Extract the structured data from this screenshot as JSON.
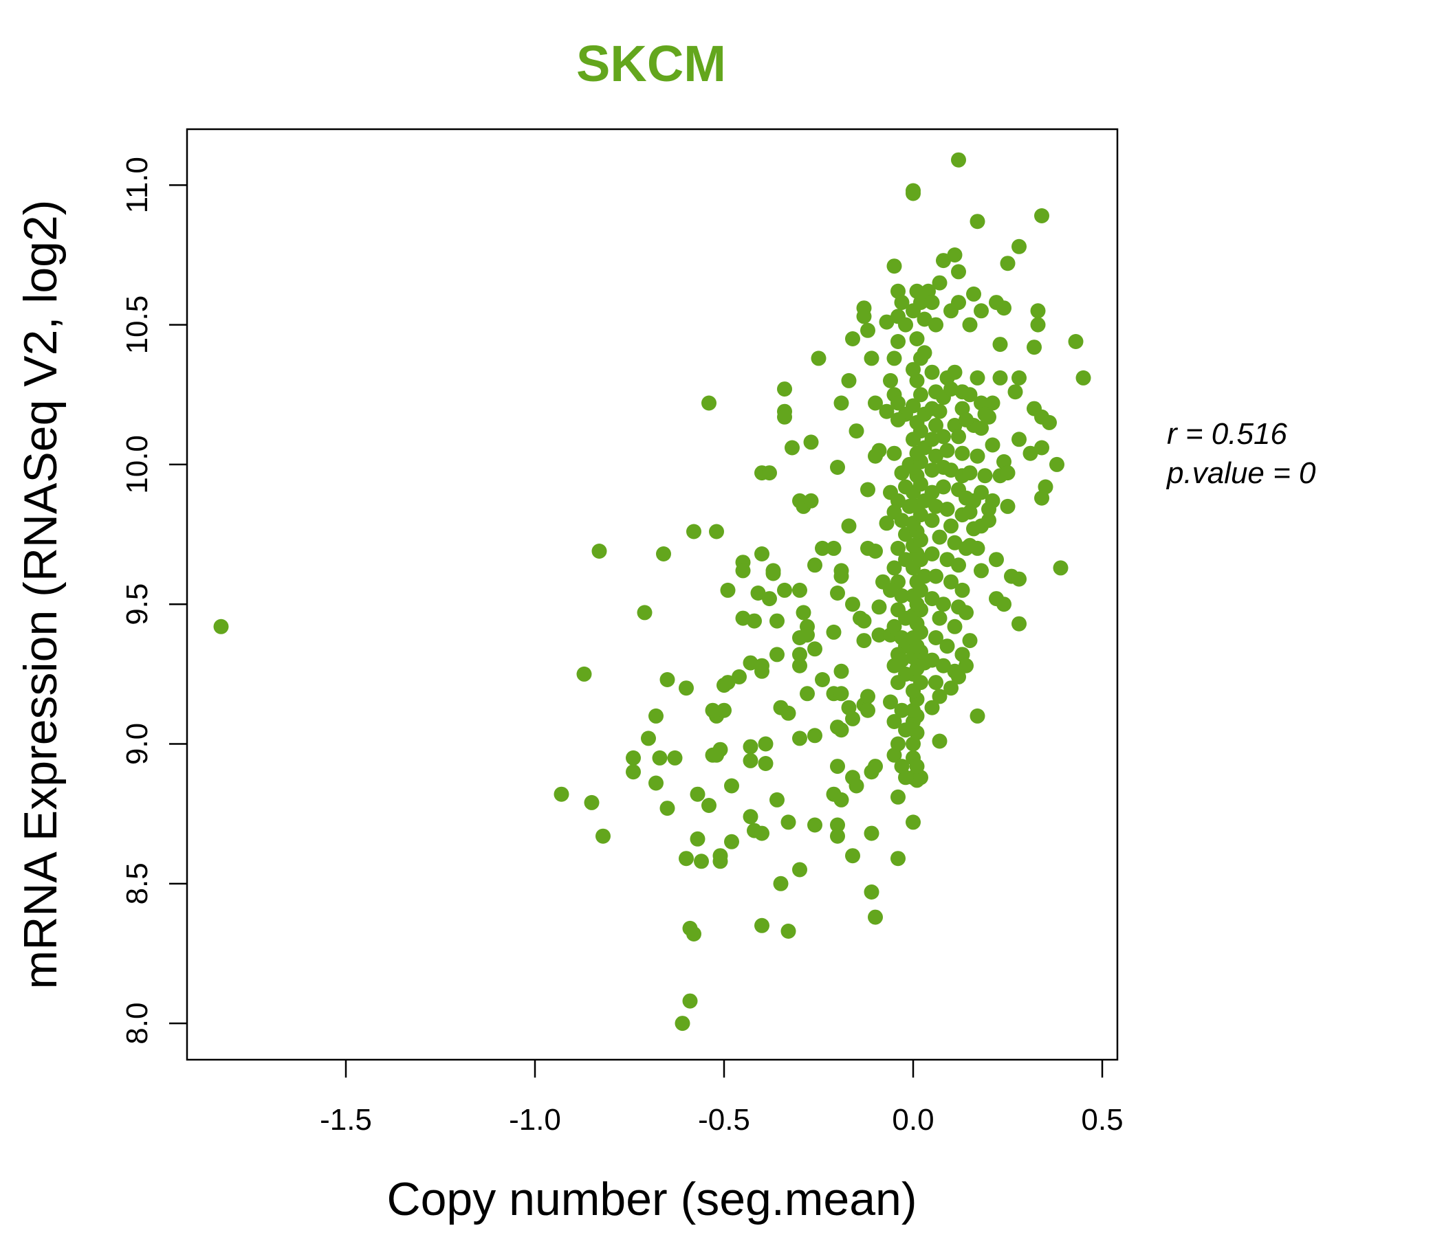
{
  "chart_data": {
    "type": "scatter",
    "title": "SKCM",
    "xlabel": "Copy number (seg.mean)",
    "ylabel": "mRNA Expression (RNASeq V2, log2)",
    "xlim": [
      -1.92,
      0.54
    ],
    "ylim": [
      7.87,
      11.2
    ],
    "xticks": [
      -1.5,
      -1.0,
      -0.5,
      0.0,
      0.5
    ],
    "xtick_labels": [
      "-1.5",
      "-1.0",
      "-0.5",
      "0.0",
      "0.5"
    ],
    "yticks": [
      8.0,
      8.5,
      9.0,
      9.5,
      10.0,
      10.5,
      11.0
    ],
    "ytick_labels": [
      "8.0",
      "8.5",
      "9.0",
      "9.5",
      "10.0",
      "10.5",
      "11.0"
    ],
    "annotation_r": "r = 0.516",
    "annotation_p": "p.value = 0",
    "point_color": "#63A61D",
    "title_color": "#63A61D",
    "points": [
      [
        -1.83,
        9.42
      ],
      [
        -0.87,
        9.25
      ],
      [
        -0.83,
        9.69
      ],
      [
        -0.82,
        8.67
      ],
      [
        -0.85,
        8.79
      ],
      [
        -0.93,
        8.82
      ],
      [
        -0.71,
        9.47
      ],
      [
        -0.66,
        9.68
      ],
      [
        -0.65,
        9.23
      ],
      [
        -0.68,
        9.1
      ],
      [
        -0.7,
        9.02
      ],
      [
        -0.74,
        8.95
      ],
      [
        -0.74,
        8.9
      ],
      [
        -0.68,
        8.86
      ],
      [
        -0.67,
        8.95
      ],
      [
        -0.63,
        8.95
      ],
      [
        -0.65,
        8.77
      ],
      [
        -0.6,
        9.2
      ],
      [
        -0.58,
        9.76
      ],
      [
        -0.52,
        9.76
      ],
      [
        -0.54,
        10.22
      ],
      [
        -0.52,
        9.1
      ],
      [
        -0.5,
        9.12
      ],
      [
        -0.53,
        9.12
      ],
      [
        -0.5,
        9.21
      ],
      [
        -0.49,
        9.22
      ],
      [
        -0.51,
        8.98
      ],
      [
        -0.53,
        8.96
      ],
      [
        -0.52,
        8.96
      ],
      [
        -0.57,
        8.82
      ],
      [
        -0.54,
        8.78
      ],
      [
        -0.48,
        8.85
      ],
      [
        -0.57,
        8.66
      ],
      [
        -0.48,
        8.65
      ],
      [
        -0.51,
        8.6
      ],
      [
        -0.51,
        8.58
      ],
      [
        -0.56,
        8.58
      ],
      [
        -0.6,
        8.59
      ],
      [
        -0.59,
        8.34
      ],
      [
        -0.58,
        8.32
      ],
      [
        -0.59,
        8.08
      ],
      [
        -0.61,
        8.0
      ],
      [
        -0.49,
        9.55
      ],
      [
        -0.45,
        9.65
      ],
      [
        -0.45,
        9.62
      ],
      [
        -0.45,
        9.45
      ],
      [
        -0.42,
        9.44
      ],
      [
        -0.46,
        9.24
      ],
      [
        -0.43,
        9.29
      ],
      [
        -0.4,
        9.28
      ],
      [
        -0.4,
        9.26
      ],
      [
        -0.41,
        9.54
      ],
      [
        -0.4,
        9.68
      ],
      [
        -0.37,
        9.62
      ],
      [
        -0.37,
        9.61
      ],
      [
        -0.38,
        9.52
      ],
      [
        -0.36,
        9.44
      ],
      [
        -0.34,
        9.55
      ],
      [
        -0.36,
        9.32
      ],
      [
        -0.4,
        9.97
      ],
      [
        -0.38,
        9.97
      ],
      [
        -0.34,
        10.27
      ],
      [
        -0.34,
        10.19
      ],
      [
        -0.34,
        10.17
      ],
      [
        -0.32,
        10.06
      ],
      [
        -0.3,
        9.87
      ],
      [
        -0.29,
        9.85
      ],
      [
        -0.27,
        9.87
      ],
      [
        -0.27,
        10.08
      ],
      [
        -0.25,
        10.38
      ],
      [
        -0.26,
        9.64
      ],
      [
        -0.24,
        9.7
      ],
      [
        -0.3,
        9.55
      ],
      [
        -0.29,
        9.47
      ],
      [
        -0.28,
        9.42
      ],
      [
        -0.3,
        9.38
      ],
      [
        -0.28,
        9.39
      ],
      [
        -0.26,
        9.34
      ],
      [
        -0.3,
        9.32
      ],
      [
        -0.3,
        9.28
      ],
      [
        -0.24,
        9.23
      ],
      [
        -0.28,
        9.18
      ],
      [
        -0.33,
        9.11
      ],
      [
        -0.35,
        9.13
      ],
      [
        -0.3,
        9.02
      ],
      [
        -0.26,
        9.03
      ],
      [
        -0.43,
        8.99
      ],
      [
        -0.43,
        8.94
      ],
      [
        -0.39,
        9.0
      ],
      [
        -0.39,
        8.93
      ],
      [
        -0.36,
        8.8
      ],
      [
        -0.43,
        8.74
      ],
      [
        -0.42,
        8.69
      ],
      [
        -0.4,
        8.68
      ],
      [
        -0.33,
        8.72
      ],
      [
        -0.26,
        8.71
      ],
      [
        -0.3,
        8.55
      ],
      [
        -0.35,
        8.5
      ],
      [
        -0.4,
        8.35
      ],
      [
        -0.33,
        8.33
      ],
      [
        -0.21,
        9.7
      ],
      [
        -0.19,
        9.62
      ],
      [
        -0.19,
        9.6
      ],
      [
        -0.2,
        9.54
      ],
      [
        -0.16,
        9.5
      ],
      [
        -0.14,
        9.45
      ],
      [
        -0.13,
        9.44
      ],
      [
        -0.21,
        9.4
      ],
      [
        -0.13,
        9.37
      ],
      [
        -0.19,
        9.26
      ],
      [
        -0.21,
        9.18
      ],
      [
        -0.19,
        9.18
      ],
      [
        -0.13,
        9.14
      ],
      [
        -0.12,
        9.17
      ],
      [
        -0.17,
        9.13
      ],
      [
        -0.12,
        9.12
      ],
      [
        -0.16,
        9.09
      ],
      [
        -0.2,
        9.06
      ],
      [
        -0.19,
        9.05
      ],
      [
        -0.2,
        8.92
      ],
      [
        -0.11,
        8.9
      ],
      [
        -0.1,
        8.92
      ],
      [
        -0.16,
        8.88
      ],
      [
        -0.15,
        8.85
      ],
      [
        -0.21,
        8.82
      ],
      [
        -0.19,
        8.8
      ],
      [
        -0.2,
        8.71
      ],
      [
        -0.2,
        8.67
      ],
      [
        -0.11,
        8.68
      ],
      [
        -0.16,
        8.6
      ],
      [
        -0.11,
        8.47
      ],
      [
        -0.1,
        8.38
      ],
      [
        -0.2,
        9.99
      ],
      [
        -0.17,
        9.78
      ],
      [
        -0.19,
        10.22
      ],
      [
        -0.17,
        10.3
      ],
      [
        -0.16,
        10.45
      ],
      [
        -0.13,
        10.56
      ],
      [
        -0.13,
        10.53
      ],
      [
        -0.12,
        10.48
      ],
      [
        -0.11,
        10.38
      ],
      [
        -0.15,
        10.12
      ],
      [
        -0.12,
        9.91
      ],
      [
        -0.12,
        9.7
      ],
      [
        -0.1,
        10.22
      ],
      [
        -0.09,
        10.05
      ],
      [
        -0.1,
        10.03
      ],
      [
        -0.1,
        9.69
      ],
      [
        -0.09,
        9.49
      ],
      [
        -0.09,
        9.39
      ],
      [
        -0.06,
        9.39
      ],
      [
        -0.08,
        9.58
      ],
      [
        -0.07,
        9.79
      ],
      [
        -0.06,
        9.9
      ],
      [
        -0.05,
        10.04
      ],
      [
        -0.07,
        10.19
      ],
      [
        -0.06,
        10.3
      ],
      [
        -0.05,
        10.25
      ],
      [
        -0.04,
        10.44
      ],
      [
        -0.07,
        10.51
      ],
      [
        -0.04,
        10.53
      ],
      [
        -0.05,
        10.71
      ],
      [
        -0.04,
        10.62
      ],
      [
        -0.03,
        10.58
      ],
      [
        -0.02,
        10.5
      ],
      [
        -0.05,
        10.38
      ],
      [
        -0.04,
        10.22
      ],
      [
        -0.02,
        10.18
      ],
      [
        -0.04,
        10.16
      ],
      [
        -0.01,
        10.0
      ],
      [
        -0.03,
        9.97
      ],
      [
        -0.02,
        9.92
      ],
      [
        -0.04,
        9.87
      ],
      [
        -0.01,
        9.85
      ],
      [
        -0.05,
        9.83
      ],
      [
        -0.03,
        9.8
      ],
      [
        -0.02,
        9.75
      ],
      [
        -0.04,
        9.7
      ],
      [
        -0.02,
        9.66
      ],
      [
        -0.05,
        9.63
      ],
      [
        -0.04,
        9.58
      ],
      [
        -0.06,
        9.55
      ],
      [
        -0.03,
        9.53
      ],
      [
        -0.04,
        9.48
      ],
      [
        -0.02,
        9.45
      ],
      [
        -0.05,
        9.42
      ],
      [
        -0.03,
        9.38
      ],
      [
        -0.02,
        9.35
      ],
      [
        -0.04,
        9.32
      ],
      [
        -0.03,
        9.3
      ],
      [
        -0.05,
        9.28
      ],
      [
        -0.02,
        9.25
      ],
      [
        -0.04,
        9.22
      ],
      [
        -0.06,
        9.15
      ],
      [
        -0.03,
        9.12
      ],
      [
        -0.05,
        9.08
      ],
      [
        -0.02,
        9.05
      ],
      [
        -0.04,
        9.0
      ],
      [
        -0.05,
        8.96
      ],
      [
        -0.03,
        8.92
      ],
      [
        -0.02,
        8.88
      ],
      [
        -0.04,
        8.81
      ],
      [
        -0.04,
        8.59
      ],
      [
        0.0,
        8.72
      ],
      [
        0.0,
        8.88
      ],
      [
        0.01,
        8.87
      ],
      [
        0.02,
        8.88
      ],
      [
        0.0,
        8.95
      ],
      [
        0.01,
        8.92
      ],
      [
        0.0,
        9.0
      ],
      [
        0.01,
        9.04
      ],
      [
        0.0,
        9.08
      ],
      [
        0.01,
        9.1
      ],
      [
        0.0,
        9.12
      ],
      [
        0.01,
        9.16
      ],
      [
        0.0,
        9.19
      ],
      [
        0.02,
        9.22
      ],
      [
        0.0,
        9.25
      ],
      [
        0.01,
        9.27
      ],
      [
        0.03,
        9.29
      ],
      [
        0.0,
        9.31
      ],
      [
        0.02,
        9.33
      ],
      [
        0.01,
        9.35
      ],
      [
        0.0,
        9.38
      ],
      [
        0.02,
        9.4
      ],
      [
        0.01,
        9.43
      ],
      [
        0.0,
        9.46
      ],
      [
        0.02,
        9.48
      ],
      [
        0.01,
        9.5
      ],
      [
        0.0,
        9.53
      ],
      [
        0.02,
        9.55
      ],
      [
        0.01,
        9.58
      ],
      [
        0.03,
        9.6
      ],
      [
        0.0,
        9.63
      ],
      [
        0.02,
        9.66
      ],
      [
        0.01,
        9.68
      ],
      [
        0.0,
        9.71
      ],
      [
        0.02,
        9.73
      ],
      [
        0.01,
        9.76
      ],
      [
        0.0,
        9.79
      ],
      [
        0.02,
        9.82
      ],
      [
        0.01,
        9.85
      ],
      [
        0.03,
        9.87
      ],
      [
        0.0,
        9.9
      ],
      [
        0.02,
        9.93
      ],
      [
        0.01,
        9.96
      ],
      [
        0.0,
        9.99
      ],
      [
        0.02,
        10.01
      ],
      [
        0.01,
        10.04
      ],
      [
        0.03,
        10.06
      ],
      [
        0.0,
        10.09
      ],
      [
        0.02,
        10.12
      ],
      [
        0.01,
        10.15
      ],
      [
        0.03,
        10.18
      ],
      [
        0.0,
        10.21
      ],
      [
        0.02,
        10.25
      ],
      [
        0.01,
        10.3
      ],
      [
        0.0,
        10.34
      ],
      [
        0.02,
        10.38
      ],
      [
        0.03,
        10.4
      ],
      [
        0.01,
        10.45
      ],
      [
        0.03,
        10.52
      ],
      [
        0.0,
        10.55
      ],
      [
        0.02,
        10.58
      ],
      [
        0.01,
        10.62
      ],
      [
        0.0,
        10.97
      ],
      [
        0.0,
        10.98
      ],
      [
        0.06,
        10.5
      ],
      [
        0.04,
        10.62
      ],
      [
        0.05,
        10.58
      ],
      [
        0.07,
        10.65
      ],
      [
        0.08,
        10.73
      ],
      [
        0.11,
        10.75
      ],
      [
        0.12,
        10.69
      ],
      [
        0.1,
        10.55
      ],
      [
        0.12,
        10.58
      ],
      [
        0.05,
        10.33
      ],
      [
        0.09,
        10.31
      ],
      [
        0.11,
        10.33
      ],
      [
        0.06,
        10.26
      ],
      [
        0.08,
        10.24
      ],
      [
        0.1,
        10.27
      ],
      [
        0.13,
        10.26
      ],
      [
        0.05,
        10.2
      ],
      [
        0.07,
        10.19
      ],
      [
        0.13,
        10.2
      ],
      [
        0.06,
        10.14
      ],
      [
        0.11,
        10.14
      ],
      [
        0.05,
        10.09
      ],
      [
        0.08,
        10.1
      ],
      [
        0.12,
        10.1
      ],
      [
        0.06,
        10.03
      ],
      [
        0.09,
        10.05
      ],
      [
        0.13,
        10.04
      ],
      [
        0.05,
        9.98
      ],
      [
        0.08,
        9.99
      ],
      [
        0.1,
        9.98
      ],
      [
        0.13,
        9.96
      ],
      [
        0.05,
        9.9
      ],
      [
        0.08,
        9.92
      ],
      [
        0.12,
        9.91
      ],
      [
        0.14,
        9.88
      ],
      [
        0.06,
        9.85
      ],
      [
        0.09,
        9.84
      ],
      [
        0.13,
        9.82
      ],
      [
        0.05,
        9.8
      ],
      [
        0.1,
        9.78
      ],
      [
        0.07,
        9.74
      ],
      [
        0.11,
        9.72
      ],
      [
        0.14,
        9.7
      ],
      [
        0.05,
        9.68
      ],
      [
        0.09,
        9.66
      ],
      [
        0.12,
        9.64
      ],
      [
        0.06,
        9.6
      ],
      [
        0.1,
        9.58
      ],
      [
        0.13,
        9.55
      ],
      [
        0.05,
        9.52
      ],
      [
        0.08,
        9.5
      ],
      [
        0.12,
        9.49
      ],
      [
        0.07,
        9.45
      ],
      [
        0.11,
        9.42
      ],
      [
        0.06,
        9.38
      ],
      [
        0.09,
        9.35
      ],
      [
        0.13,
        9.32
      ],
      [
        0.05,
        9.3
      ],
      [
        0.08,
        9.28
      ],
      [
        0.11,
        9.26
      ],
      [
        0.06,
        9.22
      ],
      [
        0.1,
        9.2
      ],
      [
        0.12,
        9.24
      ],
      [
        0.07,
        9.17
      ],
      [
        0.05,
        9.13
      ],
      [
        0.07,
        9.01
      ],
      [
        0.12,
        11.09
      ],
      [
        0.17,
        10.87
      ],
      [
        0.16,
        10.61
      ],
      [
        0.18,
        10.55
      ],
      [
        0.15,
        10.5
      ],
      [
        0.22,
        10.58
      ],
      [
        0.24,
        10.56
      ],
      [
        0.23,
        10.43
      ],
      [
        0.17,
        10.31
      ],
      [
        0.15,
        10.25
      ],
      [
        0.18,
        10.22
      ],
      [
        0.23,
        10.31
      ],
      [
        0.21,
        10.22
      ],
      [
        0.19,
        10.18
      ],
      [
        0.2,
        10.17
      ],
      [
        0.16,
        10.14
      ],
      [
        0.14,
        10.16
      ],
      [
        0.18,
        10.13
      ],
      [
        0.21,
        10.07
      ],
      [
        0.24,
        10.01
      ],
      [
        0.17,
        10.03
      ],
      [
        0.15,
        9.97
      ],
      [
        0.19,
        9.96
      ],
      [
        0.23,
        9.96
      ],
      [
        0.25,
        9.97
      ],
      [
        0.18,
        9.9
      ],
      [
        0.16,
        9.87
      ],
      [
        0.21,
        9.87
      ],
      [
        0.15,
        9.83
      ],
      [
        0.2,
        9.84
      ],
      [
        0.25,
        9.85
      ],
      [
        0.18,
        9.78
      ],
      [
        0.16,
        9.77
      ],
      [
        0.2,
        9.8
      ],
      [
        0.15,
        9.71
      ],
      [
        0.17,
        9.7
      ],
      [
        0.22,
        9.66
      ],
      [
        0.18,
        9.62
      ],
      [
        0.14,
        9.47
      ],
      [
        0.15,
        9.37
      ],
      [
        0.13,
        9.32
      ],
      [
        0.14,
        9.28
      ],
      [
        0.17,
        9.1
      ],
      [
        0.22,
        9.52
      ],
      [
        0.24,
        9.5
      ],
      [
        0.26,
        9.6
      ],
      [
        0.28,
        9.59
      ],
      [
        0.28,
        9.43
      ],
      [
        0.25,
        10.72
      ],
      [
        0.34,
        10.89
      ],
      [
        0.28,
        10.78
      ],
      [
        0.33,
        10.55
      ],
      [
        0.33,
        10.5
      ],
      [
        0.32,
        10.42
      ],
      [
        0.27,
        10.26
      ],
      [
        0.28,
        10.31
      ],
      [
        0.32,
        10.2
      ],
      [
        0.34,
        10.17
      ],
      [
        0.36,
        10.15
      ],
      [
        0.28,
        10.09
      ],
      [
        0.31,
        10.04
      ],
      [
        0.34,
        10.06
      ],
      [
        0.38,
        10.0
      ],
      [
        0.35,
        9.92
      ],
      [
        0.34,
        9.88
      ],
      [
        0.39,
        9.63
      ],
      [
        0.43,
        10.44
      ],
      [
        0.45,
        10.31
      ]
    ]
  }
}
